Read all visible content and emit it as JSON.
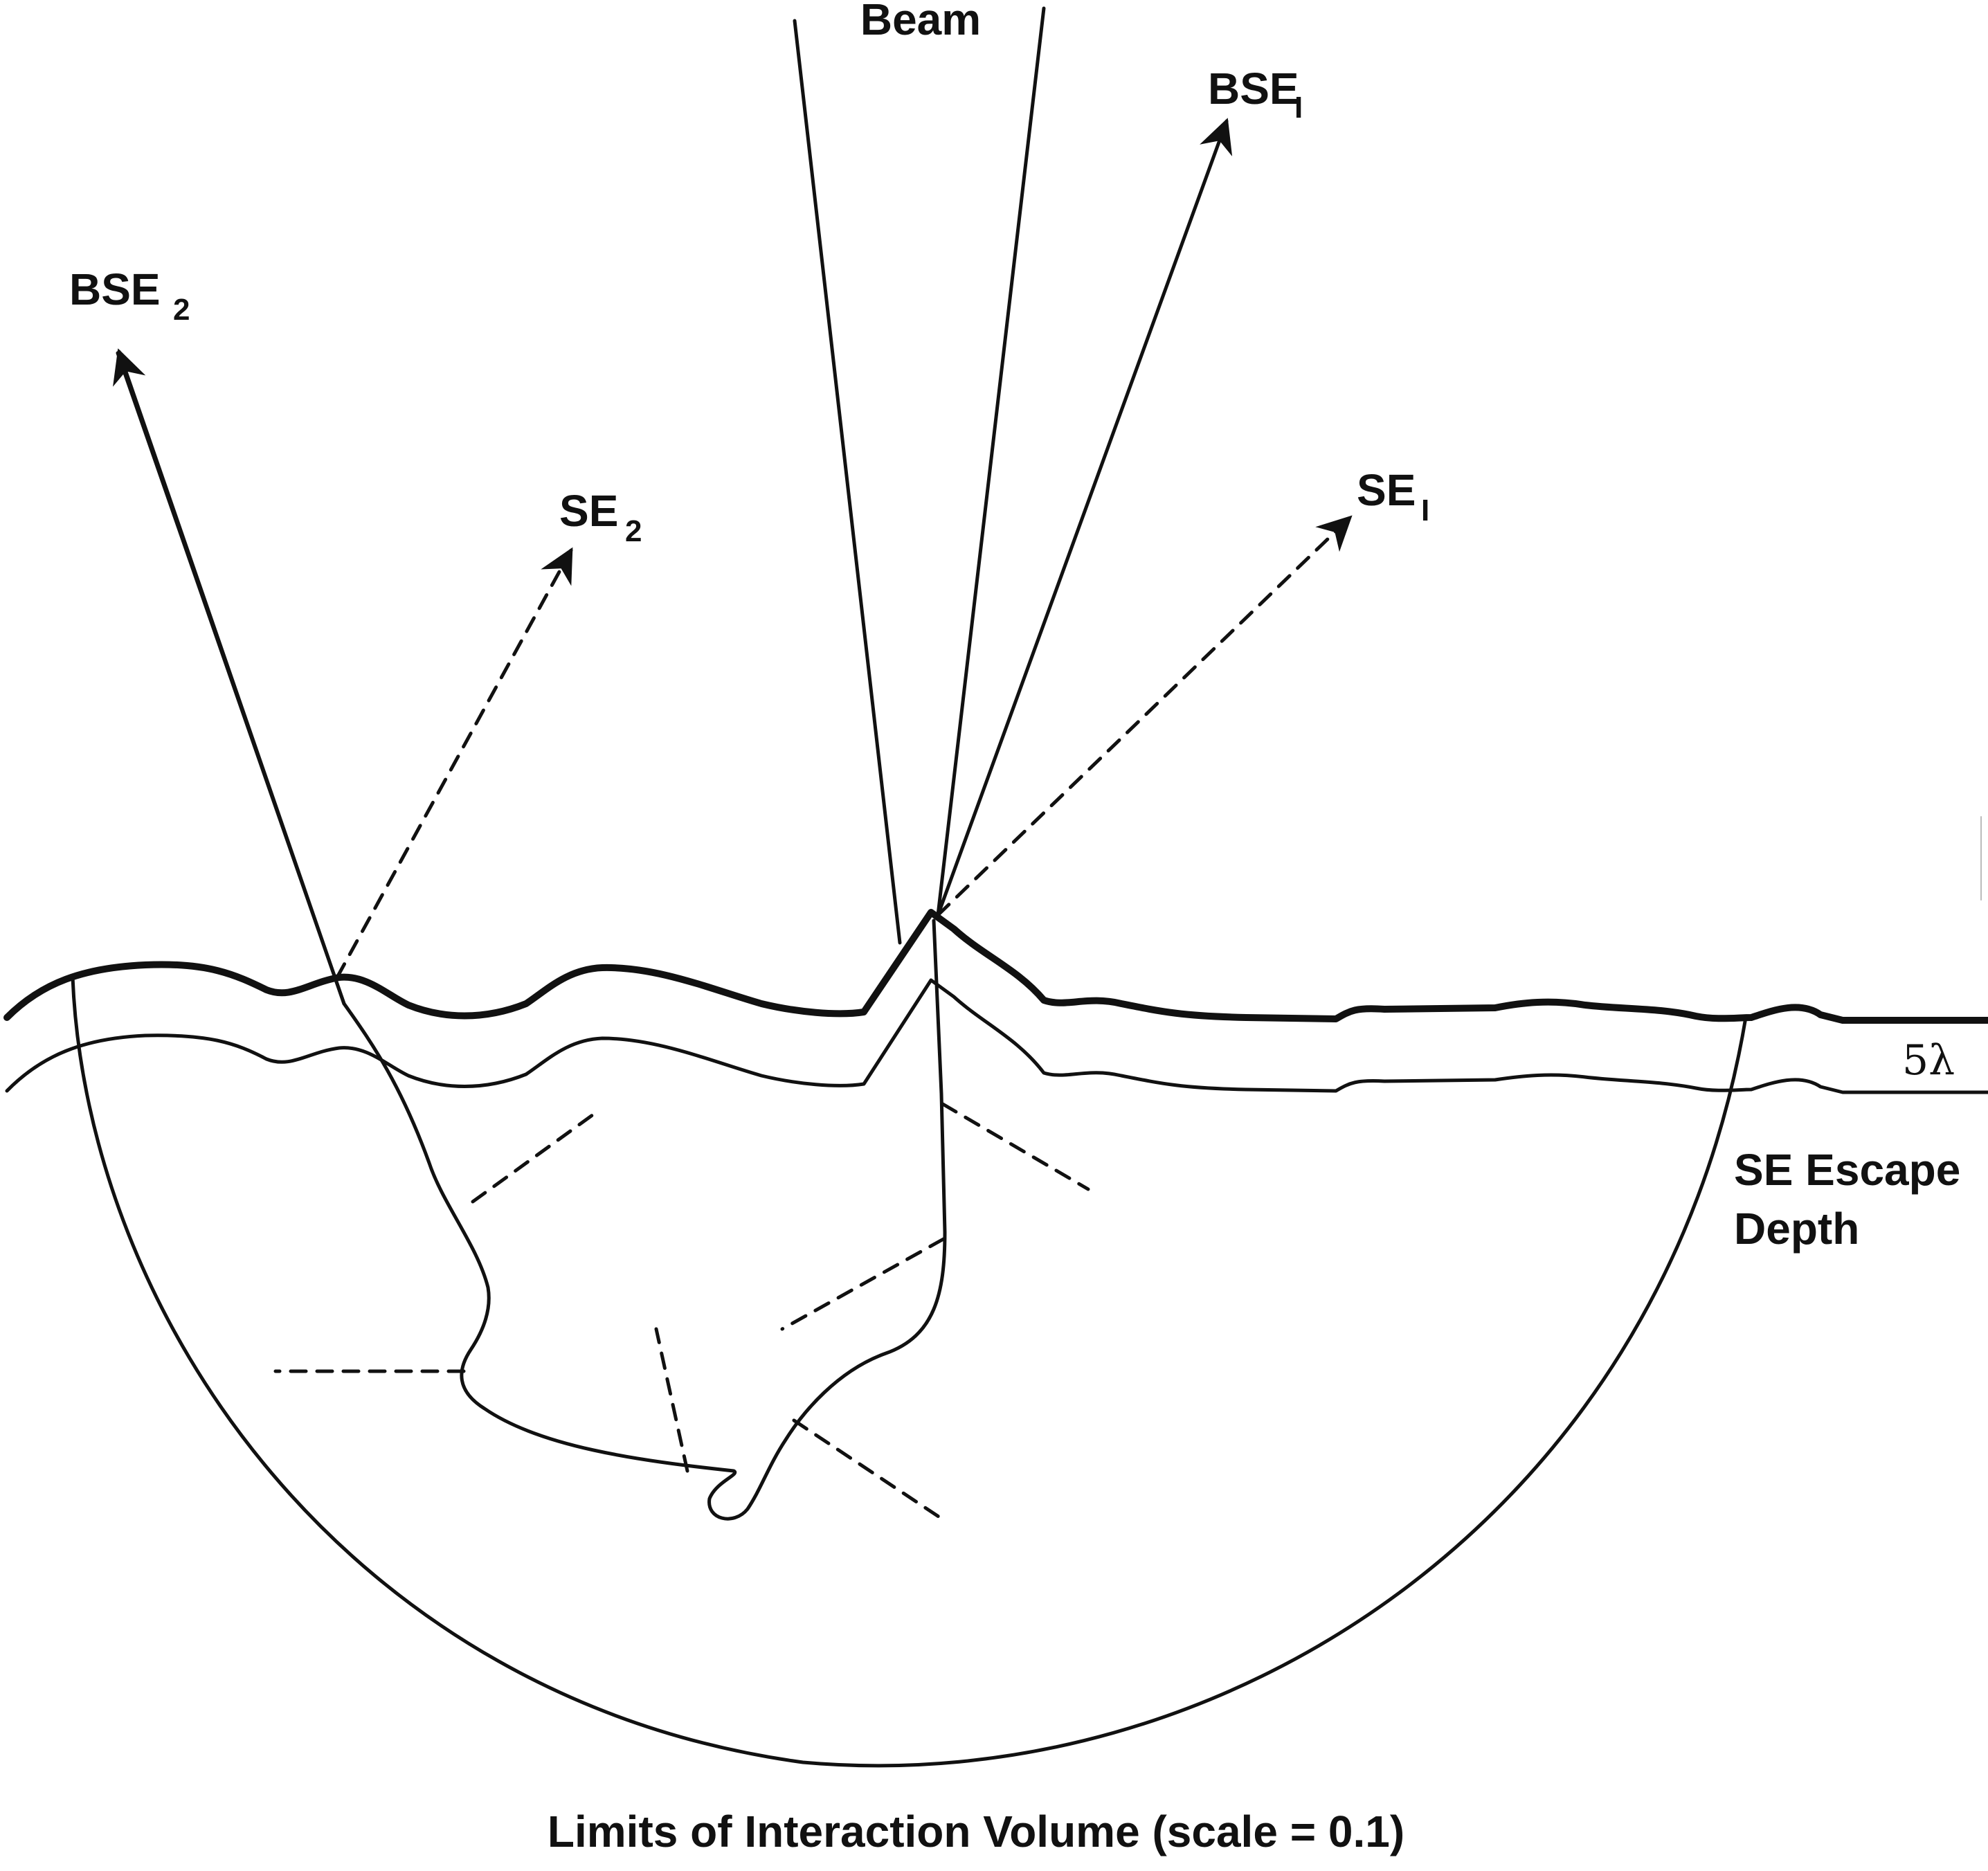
{
  "labels": {
    "beam": "Beam",
    "bse1_main": "BSE",
    "bse1_sub": "I",
    "bse2_main": "BSE",
    "bse2_sub": "2",
    "se1_main": "SE",
    "se1_sub": "I",
    "se2_main": "SE",
    "se2_sub": "2",
    "five_lambda": "5λ",
    "se_escape_line1": "SE Escape",
    "se_escape_line2": "Depth",
    "caption": "Limits of Interaction Volume (scale = 0.1)"
  },
  "colors": {
    "ink": "#111111",
    "background": "#ffffff"
  }
}
